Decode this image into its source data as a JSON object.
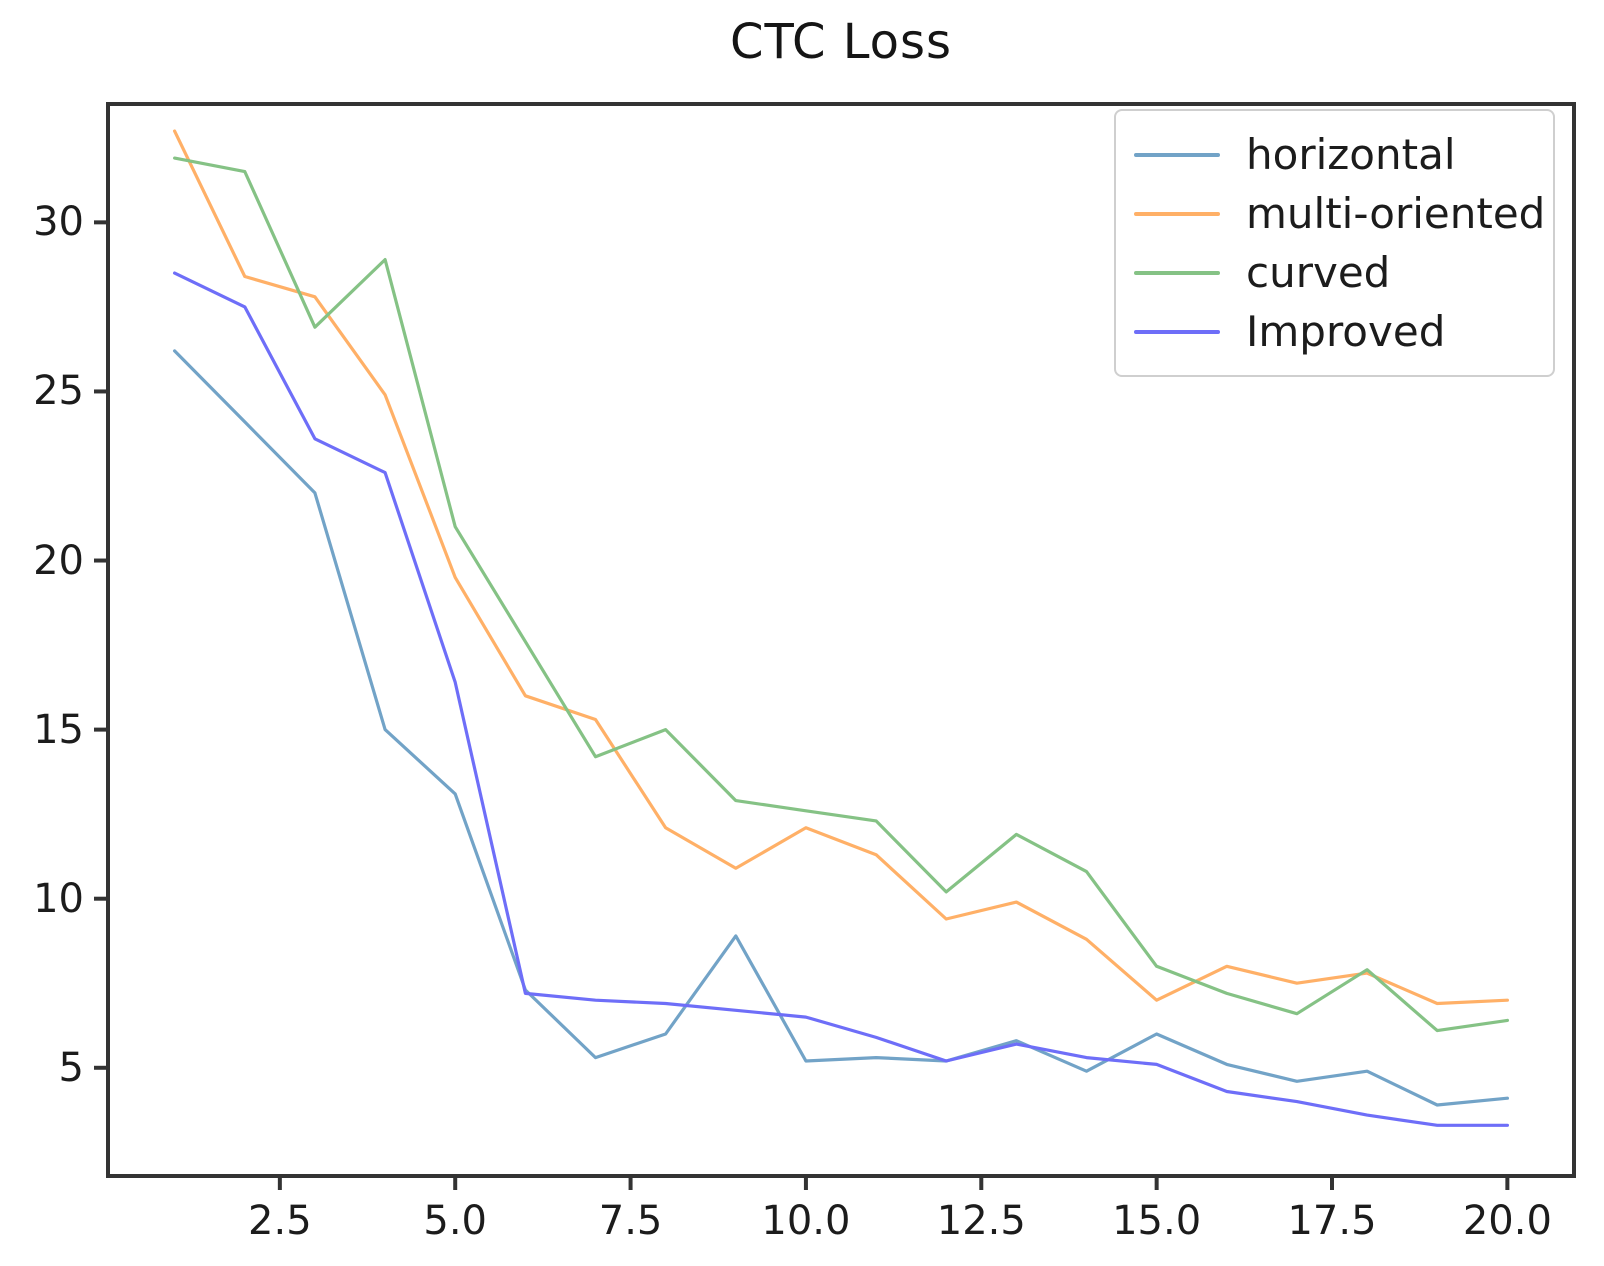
{
  "chart_data": {
    "type": "line",
    "title": "CTC Loss",
    "xlabel": "",
    "ylabel": "",
    "x": [
      1,
      2,
      3,
      4,
      5,
      6,
      7,
      8,
      9,
      10,
      11,
      12,
      13,
      14,
      15,
      16,
      17,
      18,
      19,
      20
    ],
    "series": [
      {
        "name": "horizontal",
        "color": "#72a3c7",
        "values": [
          26.2,
          24.1,
          22.0,
          15.0,
          13.1,
          7.3,
          5.3,
          6.0,
          8.9,
          5.2,
          5.3,
          5.2,
          5.8,
          4.9,
          6.0,
          5.1,
          4.6,
          4.9,
          3.9,
          4.1
        ]
      },
      {
        "name": "multi-oriented",
        "color": "#ffb067",
        "values": [
          32.7,
          28.4,
          27.8,
          24.9,
          19.5,
          16.0,
          15.3,
          12.1,
          10.9,
          12.1,
          11.3,
          9.4,
          9.9,
          8.8,
          7.0,
          8.0,
          7.5,
          7.8,
          6.9,
          7.0
        ]
      },
      {
        "name": "curved",
        "color": "#85c285",
        "values": [
          31.9,
          31.5,
          26.9,
          28.9,
          21.0,
          17.6,
          14.2,
          15.0,
          12.9,
          12.6,
          12.3,
          10.2,
          11.9,
          10.8,
          8.0,
          7.2,
          6.6,
          7.9,
          6.1,
          6.4
        ]
      },
      {
        "name": "Improved",
        "color": "#6e6ef8",
        "values": [
          28.5,
          27.5,
          23.6,
          22.6,
          16.4,
          7.2,
          7.0,
          6.9,
          6.7,
          6.5,
          5.9,
          5.2,
          5.7,
          5.3,
          5.1,
          4.3,
          4.0,
          3.6,
          3.3,
          3.3
        ]
      }
    ],
    "xlim": [
      0.05,
      20.95
    ],
    "ylim": [
      1.8,
      33.5
    ],
    "xticks": {
      "values": [
        2.5,
        5.0,
        7.5,
        10.0,
        12.5,
        15.0,
        17.5,
        20.0
      ],
      "labels": [
        "2.5",
        "5.0",
        "7.5",
        "10.0",
        "12.5",
        "15.0",
        "17.5",
        "20.0"
      ]
    },
    "yticks": {
      "values": [
        5,
        10,
        15,
        20,
        25,
        30
      ],
      "labels": [
        "5",
        "10",
        "15",
        "20",
        "25",
        "30"
      ]
    },
    "grid": false,
    "legend_position": "upper right",
    "axis_color": "#333333",
    "background_color": "#ffffff"
  }
}
